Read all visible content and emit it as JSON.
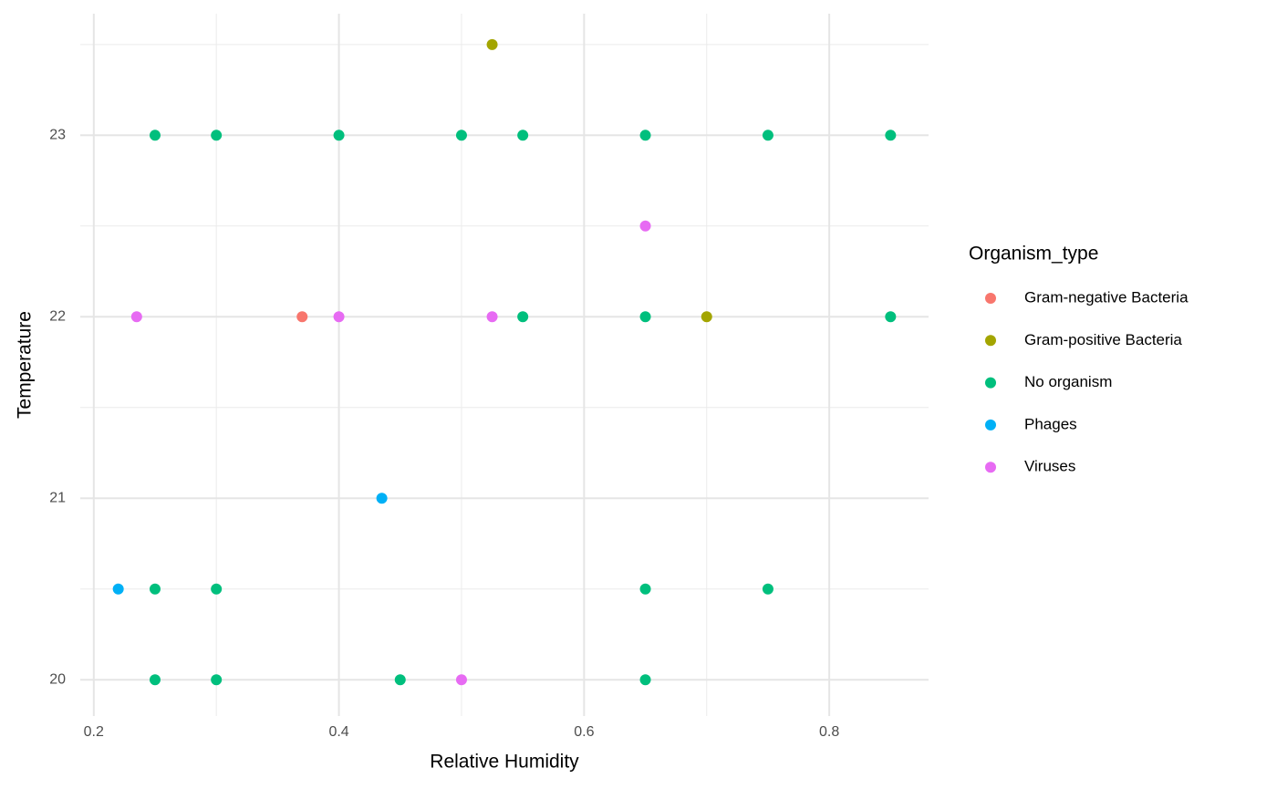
{
  "chart_data": {
    "type": "scatter",
    "x_label": "Relative Humidity",
    "y_label": "Temperature",
    "legend_title": "Organism_type",
    "legend_position": "right",
    "grid": true,
    "xlim": [
      0.189,
      0.881
    ],
    "ylim": [
      19.8,
      23.67
    ],
    "xticks": [
      0.2,
      0.4,
      0.6,
      0.8
    ],
    "yticks": [
      20,
      21,
      22,
      23
    ],
    "x_minor_ticks": [
      0.3,
      0.5,
      0.7
    ],
    "y_minor_ticks": [
      20.5,
      21.5,
      22.5,
      23.5
    ],
    "series": [
      {
        "name": "Gram-negative Bacteria",
        "color": "#F8766D",
        "x": [
          0.37
        ],
        "y": [
          22
        ]
      },
      {
        "name": "Gram-positive Bacteria",
        "color": "#A3A500",
        "x": [
          0.525,
          0.7
        ],
        "y": [
          23.5,
          22
        ]
      },
      {
        "name": "No organism",
        "color": "#00BF7D",
        "x": [
          0.25,
          0.3,
          0.4,
          0.5,
          0.55,
          0.65,
          0.75,
          0.85,
          0.55,
          0.65,
          0.85,
          0.25,
          0.3,
          0.65,
          0.75,
          0.25,
          0.3,
          0.45,
          0.65
        ],
        "y": [
          23,
          23,
          23,
          23,
          23,
          23,
          23,
          23,
          22,
          22,
          22,
          20.5,
          20.5,
          20.5,
          20.5,
          20,
          20,
          20,
          20
        ]
      },
      {
        "name": "Phages",
        "color": "#00B0F6",
        "x": [
          0.22,
          0.435
        ],
        "y": [
          20.5,
          21
        ]
      },
      {
        "name": "Viruses",
        "color": "#E76BF3",
        "x": [
          0.235,
          0.4,
          0.525,
          0.65,
          0.5
        ],
        "y": [
          22,
          22,
          22,
          22.5,
          20
        ]
      }
    ]
  }
}
